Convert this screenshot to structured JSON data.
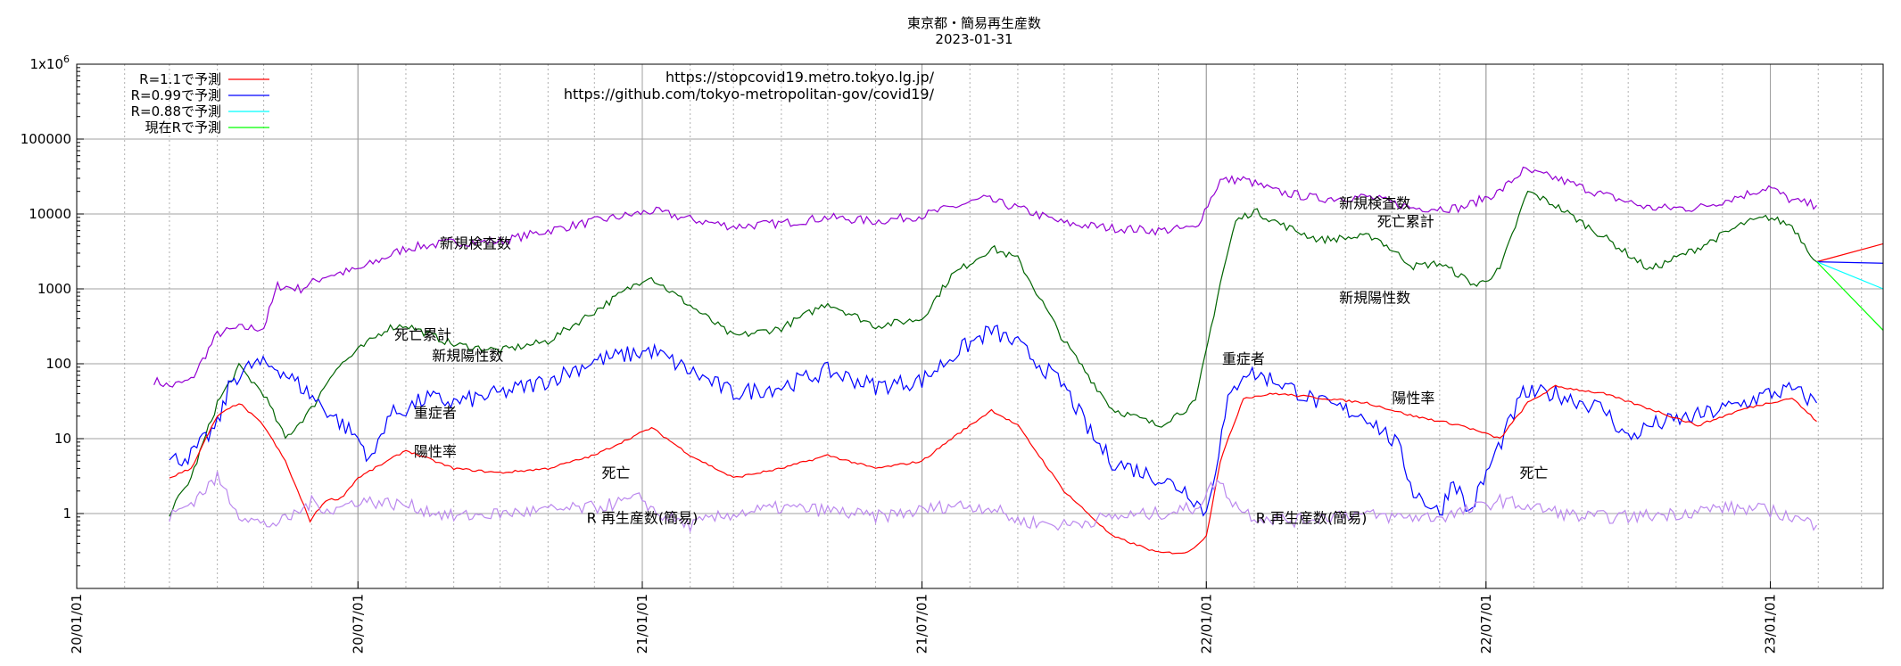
{
  "chart_data": {
    "type": "line",
    "title": "東京都・簡易再生産数",
    "subtitle": "2023-01-31",
    "y_scale": "log",
    "ylim": [
      0.1,
      1000000
    ],
    "y_ticks": [
      {
        "value": 1,
        "label": "1"
      },
      {
        "value": 10,
        "label": "10"
      },
      {
        "value": 100,
        "label": "100"
      },
      {
        "value": 1000,
        "label": "1000"
      },
      {
        "value": 10000,
        "label": "10000"
      },
      {
        "value": 100000,
        "label": "100000"
      }
    ],
    "y_top_label": {
      "base": "1x10",
      "exp": "6"
    },
    "xlim": [
      "2020-01-01",
      "2023-03-15"
    ],
    "x_ticks": [
      {
        "date": "2020-01-01",
        "label": "20/01/01"
      },
      {
        "date": "2020-07-01",
        "label": "20/07/01"
      },
      {
        "date": "2021-01-01",
        "label": "21/01/01"
      },
      {
        "date": "2021-07-01",
        "label": "21/07/01"
      },
      {
        "date": "2022-01-01",
        "label": "22/01/01"
      },
      {
        "date": "2022-07-01",
        "label": "22/07/01"
      },
      {
        "date": "2023-01-01",
        "label": "23/01/01"
      }
    ],
    "urls": [
      "https://stopcovid19.metro.tokyo.lg.jp/",
      "https://github.com/tokyo-metropolitan-gov/covid19/"
    ],
    "legend_position": "top-left",
    "legend": [
      {
        "name": "R=1.1で予測",
        "color": "#ff0000"
      },
      {
        "name": "R=0.99で予測",
        "color": "#0000ff"
      },
      {
        "name": "R=0.88で予測",
        "color": "#00ffff"
      },
      {
        "name": "現在Rで予測",
        "color": "#00ff00"
      }
    ],
    "annotations": [
      {
        "text": "新規検査数",
        "date": "2020-09-15",
        "value": 3500
      },
      {
        "text": "死亡累計",
        "date": "2020-08-12",
        "value": 210
      },
      {
        "text": "新規陽性数",
        "date": "2020-09-10",
        "value": 110
      },
      {
        "text": "重症者",
        "date": "2020-08-20",
        "value": 19
      },
      {
        "text": "陽性率",
        "date": "2020-08-20",
        "value": 5.8
      },
      {
        "text": "死亡",
        "date": "2020-12-15",
        "value": 3.0
      },
      {
        "text": "R 再生産数(簡易)",
        "date": "2021-01-01",
        "value": 0.75
      },
      {
        "text": "新規検査数",
        "date": "2022-04-20",
        "value": 12000
      },
      {
        "text": "死亡累計",
        "date": "2022-05-10",
        "value": 6800
      },
      {
        "text": "新規陽性数",
        "date": "2022-04-20",
        "value": 650
      },
      {
        "text": "重症者",
        "date": "2022-01-25",
        "value": 100
      },
      {
        "text": "陽性率",
        "date": "2022-05-15",
        "value": 30
      },
      {
        "text": "死亡",
        "date": "2022-08-01",
        "value": 3.0
      },
      {
        "text": "R 再生産数(簡易)",
        "date": "2022-03-10",
        "value": 0.75
      }
    ],
    "series": [
      {
        "key": "tests",
        "color": "#9400d3",
        "x": [
          "2020-02-20",
          "2020-03-01",
          "2020-03-15",
          "2020-04-01",
          "2020-04-15",
          "2020-05-01",
          "2020-05-10",
          "2020-05-25",
          "2020-06-10",
          "2020-07-01",
          "2020-08-01",
          "2020-09-01",
          "2020-10-01",
          "2020-11-01",
          "2020-12-01",
          "2021-01-08",
          "2021-02-01",
          "2021-03-01",
          "2021-04-01",
          "2021-05-01",
          "2021-06-01",
          "2021-07-01",
          "2021-08-10",
          "2021-09-01",
          "2021-10-01",
          "2021-11-01",
          "2021-12-01",
          "2021-12-25",
          "2022-01-10",
          "2022-01-25",
          "2022-02-15",
          "2022-03-15",
          "2022-04-15",
          "2022-05-15",
          "2022-06-15",
          "2022-07-10",
          "2022-07-25",
          "2022-08-15",
          "2022-09-15",
          "2022-10-15",
          "2022-11-15",
          "2022-12-15",
          "2022-12-31",
          "2023-01-15",
          "2023-01-31"
        ],
        "y": [
          60,
          50,
          60,
          250,
          300,
          300,
          1100,
          1000,
          1500,
          1800,
          3500,
          4200,
          4300,
          6000,
          8000,
          11000,
          8500,
          6800,
          7500,
          9000,
          8000,
          9500,
          16000,
          12000,
          7500,
          6500,
          6000,
          6500,
          28000,
          29000,
          20000,
          16000,
          17000,
          12000,
          12000,
          20000,
          38000,
          30000,
          18000,
          12000,
          12000,
          18000,
          23000,
          15000,
          13000
        ]
      },
      {
        "key": "deaths_cum",
        "color": "#006400",
        "x": [
          "2020-03-01",
          "2020-03-15",
          "2020-04-01",
          "2020-04-15",
          "2020-05-01",
          "2020-05-15",
          "2020-06-01",
          "2020-06-15",
          "2020-07-01",
          "2020-07-20",
          "2020-08-01",
          "2020-09-01",
          "2020-10-01",
          "2020-11-01",
          "2020-12-01",
          "2021-01-05",
          "2021-02-01",
          "2021-03-01",
          "2021-04-01",
          "2021-05-01",
          "2021-06-01",
          "2021-07-01",
          "2021-07-20",
          "2021-08-15",
          "2021-09-01",
          "2021-10-01",
          "2021-11-01",
          "2021-12-01",
          "2021-12-25",
          "2022-01-10",
          "2022-01-20",
          "2022-02-01",
          "2022-02-20",
          "2022-03-15",
          "2022-04-01",
          "2022-04-20",
          "2022-05-15",
          "2022-06-01",
          "2022-06-25",
          "2022-07-10",
          "2022-07-28",
          "2022-08-15",
          "2022-09-15",
          "2022-10-15",
          "2022-11-15",
          "2022-12-15",
          "2022-12-31",
          "2023-01-15",
          "2023-01-31"
        ],
        "y": [
          1,
          3,
          30,
          90,
          40,
          10,
          25,
          80,
          150,
          300,
          330,
          180,
          150,
          200,
          500,
          1500,
          600,
          230,
          300,
          650,
          320,
          400,
          1500,
          3500,
          2500,
          200,
          25,
          15,
          30,
          1200,
          8000,
          11000,
          7000,
          4500,
          4800,
          5000,
          2000,
          2200,
          1100,
          1800,
          20000,
          13000,
          5000,
          1800,
          3500,
          7500,
          9000,
          7000,
          2300
        ]
      },
      {
        "key": "new_cases",
        "color": "#0000ff",
        "x": [
          "2020-03-01",
          "2020-03-15",
          "2020-04-01",
          "2020-04-10",
          "2020-04-25",
          "2020-05-10",
          "2020-05-25",
          "2020-06-15",
          "2020-07-01",
          "2020-07-10",
          "2020-07-20",
          "2020-08-01",
          "2020-08-15",
          "2020-09-01",
          "2020-10-01",
          "2020-11-01",
          "2020-12-01",
          "2021-01-07",
          "2021-02-01",
          "2021-03-01",
          "2021-04-01",
          "2021-05-01",
          "2021-06-01",
          "2021-07-01",
          "2021-07-25",
          "2021-08-15",
          "2021-09-01",
          "2021-10-01",
          "2021-10-20",
          "2021-11-01",
          "2021-12-01",
          "2021-12-20",
          "2022-01-01",
          "2022-01-15",
          "2022-01-25",
          "2022-02-15",
          "2022-03-15",
          "2022-04-15",
          "2022-05-05",
          "2022-05-15",
          "2022-06-01",
          "2022-06-10",
          "2022-06-20",
          "2022-07-05",
          "2022-07-25",
          "2022-08-15",
          "2022-09-15",
          "2022-10-01",
          "2022-10-15",
          "2022-11-15",
          "2022-12-15",
          "2022-12-31",
          "2023-01-15",
          "2023-01-31"
        ],
        "y": [
          5,
          6,
          15,
          60,
          100,
          90,
          50,
          20,
          10,
          5,
          20,
          25,
          35,
          30,
          40,
          60,
          110,
          150,
          80,
          40,
          50,
          80,
          50,
          60,
          150,
          280,
          180,
          50,
          10,
          5,
          3,
          2,
          1,
          30,
          80,
          60,
          30,
          20,
          8,
          2,
          1,
          3,
          1,
          5,
          40,
          40,
          25,
          10,
          15,
          20,
          30,
          40,
          45,
          30
        ]
      },
      {
        "key": "positivity",
        "color": "#ff0000",
        "x": [
          "2020-03-01",
          "2020-03-15",
          "2020-04-01",
          "2020-04-15",
          "2020-05-01",
          "2020-05-15",
          "2020-05-31",
          "2020-06-10",
          "2020-06-20",
          "2020-07-01",
          "2020-07-20",
          "2020-08-01",
          "2020-09-01",
          "2020-10-01",
          "2020-11-01",
          "2020-12-01",
          "2021-01-07",
          "2021-02-01",
          "2021-03-01",
          "2021-04-01",
          "2021-05-01",
          "2021-06-01",
          "2021-07-01",
          "2021-07-20",
          "2021-08-15",
          "2021-09-01",
          "2021-10-01",
          "2021-11-01",
          "2021-12-01",
          "2021-12-10",
          "2021-12-20",
          "2022-01-01",
          "2022-01-10",
          "2022-01-25",
          "2022-02-15",
          "2022-03-15",
          "2022-04-15",
          "2022-05-15",
          "2022-06-15",
          "2022-07-10",
          "2022-07-28",
          "2022-08-15",
          "2022-09-15",
          "2022-10-15",
          "2022-11-15",
          "2022-12-15",
          "2022-12-31",
          "2023-01-15",
          "2023-01-31"
        ],
        "y": [
          3,
          4,
          20,
          30,
          15,
          5,
          0.8,
          1.5,
          1.6,
          3,
          5,
          7,
          4,
          3.5,
          4,
          6,
          14,
          6,
          3,
          4,
          6,
          4,
          5,
          10,
          24,
          15,
          2,
          0.5,
          0.3,
          0.3,
          0.3,
          0.5,
          5,
          35,
          40,
          35,
          30,
          20,
          15,
          10,
          30,
          50,
          40,
          25,
          15,
          25,
          30,
          35,
          17
        ]
      },
      {
        "key": "r_value",
        "color": "#bb88ee",
        "x": [
          "2020-03-01",
          "2020-03-15",
          "2020-04-01",
          "2020-04-15",
          "2020-05-01",
          "2020-05-15",
          "2020-06-01",
          "2020-06-15",
          "2020-07-01",
          "2020-08-01",
          "2020-09-01",
          "2020-10-01",
          "2020-11-01",
          "2020-12-01",
          "2021-01-01",
          "2021-01-10",
          "2021-02-01",
          "2021-03-01",
          "2021-04-01",
          "2021-05-01",
          "2021-06-01",
          "2021-07-01",
          "2021-07-20",
          "2021-08-15",
          "2021-09-01",
          "2021-10-01",
          "2021-11-01",
          "2021-12-01",
          "2021-12-25",
          "2022-01-08",
          "2022-01-20",
          "2022-02-01",
          "2022-03-01",
          "2022-04-01",
          "2022-05-01",
          "2022-06-01",
          "2022-06-20",
          "2022-07-10",
          "2022-08-01",
          "2022-09-01",
          "2022-10-01",
          "2022-11-01",
          "2022-12-01",
          "2023-01-01",
          "2023-01-31"
        ],
        "y": [
          0.9,
          1.4,
          3,
          1,
          0.7,
          0.8,
          1.4,
          1.1,
          1.5,
          1.3,
          0.9,
          1.0,
          1.1,
          1.2,
          1.6,
          1.0,
          0.7,
          1.0,
          1.2,
          1.1,
          0.9,
          1.1,
          1.3,
          1.2,
          0.8,
          0.7,
          0.9,
          1.0,
          1.2,
          2.8,
          1.3,
          0.9,
          0.8,
          1.0,
          0.9,
          0.9,
          1.1,
          1.5,
          1.2,
          0.9,
          0.9,
          1.0,
          1.2,
          1.1,
          0.7
        ]
      }
    ],
    "projections": [
      {
        "color": "#ff0000",
        "x": [
          "2023-01-31",
          "2023-03-15"
        ],
        "y": [
          2300,
          4000
        ]
      },
      {
        "color": "#0000ff",
        "x": [
          "2023-01-31",
          "2023-03-15"
        ],
        "y": [
          2300,
          2200
        ]
      },
      {
        "color": "#00ffff",
        "x": [
          "2023-01-31",
          "2023-03-15"
        ],
        "y": [
          2300,
          1000
        ]
      },
      {
        "color": "#00ff00",
        "x": [
          "2023-01-31",
          "2023-03-15"
        ],
        "y": [
          2300,
          280
        ]
      }
    ]
  }
}
